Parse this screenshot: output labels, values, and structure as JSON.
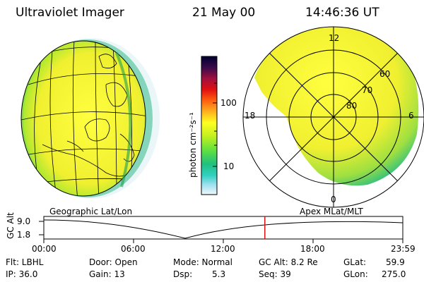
{
  "header": {
    "instrument": "Ultraviolet Imager",
    "date": "21 May 00",
    "time": "14:46:36 UT"
  },
  "colorbar": {
    "unit_label": "photon cm⁻²s⁻¹",
    "ticks": [
      "100",
      "10"
    ],
    "colors": [
      "#000030",
      "#3a0a4a",
      "#6a1060",
      "#a01040",
      "#e01010",
      "#ff5010",
      "#ff9010",
      "#ffc020",
      "#ffff20",
      "#c0f020",
      "#60e040",
      "#20c060",
      "#30d0c0",
      "#a0e0f0",
      "#e0f0f8"
    ]
  },
  "geo_panel": {
    "label": "Geographic Lat/Lon"
  },
  "polar_panel": {
    "label": "Apex MLat/MLT",
    "mlt_labels": [
      "12",
      "18",
      "6",
      "0"
    ],
    "lat_labels": [
      "60",
      "70",
      "80"
    ]
  },
  "timeline": {
    "axis_title": "GC Alt",
    "y_ticks": [
      "9.0",
      "1.8"
    ],
    "x_ticks": [
      "00:00",
      "06:00",
      "12:00",
      "18:00",
      "23:59"
    ],
    "marker_time": "14:46",
    "marker_color": "#e01010"
  },
  "info": {
    "flt_label": "Flt: LBHL",
    "ip_label": "IP: 36.0",
    "door_label": "Door: Open",
    "gain_label": "Gain: 13",
    "mode_label": "Mode: Normal",
    "dsp_label": "Dsp:",
    "dsp_value": "5.3",
    "gcalt_label": "GC Alt: 8.2 Re",
    "seq_label": "Seq: 39",
    "glat_label": "GLat:",
    "glat_value": "59.9",
    "glon_label": "GLon:",
    "glon_value": "275.0"
  }
}
